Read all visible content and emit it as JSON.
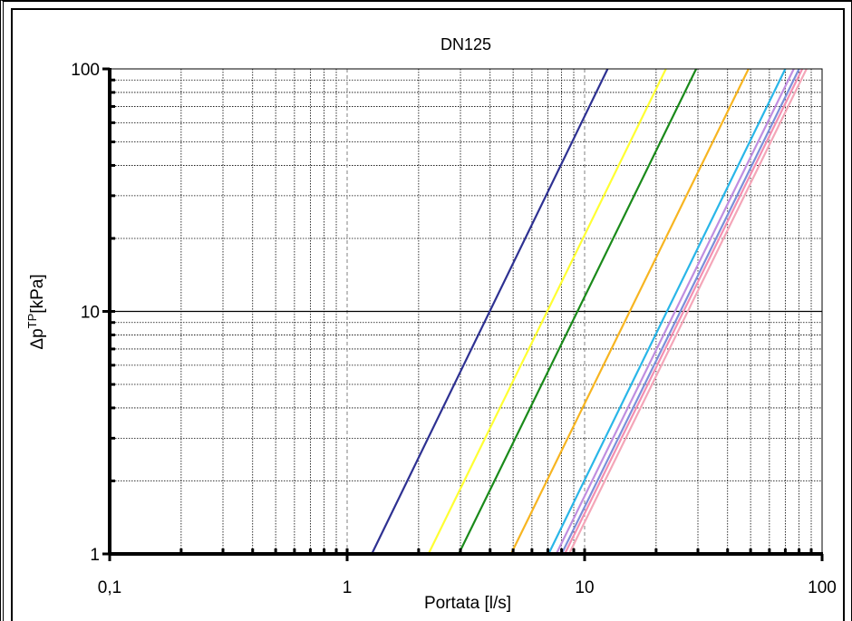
{
  "chart_data": {
    "type": "line",
    "title": "DN125",
    "xlabel": "Portata [l/s]",
    "ylabel": {
      "prefix": "Δp",
      "sup": "TP",
      "suffix": "[kPa]"
    },
    "x_scale": "log",
    "y_scale": "log",
    "xlim": [
      0.1,
      100
    ],
    "ylim": [
      1,
      100
    ],
    "x_ticks": [
      {
        "value": 0.1,
        "label": "0,1"
      },
      {
        "value": 1,
        "label": "1"
      },
      {
        "value": 10,
        "label": "10"
      },
      {
        "value": 100,
        "label": "100"
      }
    ],
    "y_ticks": [
      {
        "value": 1,
        "label": "1"
      },
      {
        "value": 10,
        "label": "10"
      },
      {
        "value": 100,
        "label": "100"
      }
    ],
    "grid": true,
    "legend": "none",
    "series": [
      {
        "color": "#2e3192",
        "points": [
          [
            1.27,
            1
          ],
          [
            12.5,
            100
          ]
        ]
      },
      {
        "color": "#ffff33",
        "points": [
          [
            2.2,
            1
          ],
          [
            22,
            100
          ]
        ]
      },
      {
        "color": "#1a8a1a",
        "points": [
          [
            2.95,
            1
          ],
          [
            29.5,
            100
          ]
        ]
      },
      {
        "color": "#f7b521",
        "points": [
          [
            4.9,
            1
          ],
          [
            49,
            100
          ]
        ]
      },
      {
        "color": "#29b6e8",
        "points": [
          [
            7.05,
            1
          ],
          [
            70,
            100
          ]
        ]
      },
      {
        "color": "#c08ee0",
        "points": [
          [
            7.6,
            1
          ],
          [
            76,
            100
          ]
        ]
      },
      {
        "color": "#7b8fd9",
        "points": [
          [
            8.0,
            1
          ],
          [
            80,
            100
          ]
        ]
      },
      {
        "color": "#f48fb1",
        "points": [
          [
            8.25,
            1
          ],
          [
            82.5,
            100
          ]
        ]
      },
      {
        "color": "#f4a6b8",
        "points": [
          [
            8.6,
            1
          ],
          [
            86,
            100
          ]
        ]
      }
    ]
  }
}
